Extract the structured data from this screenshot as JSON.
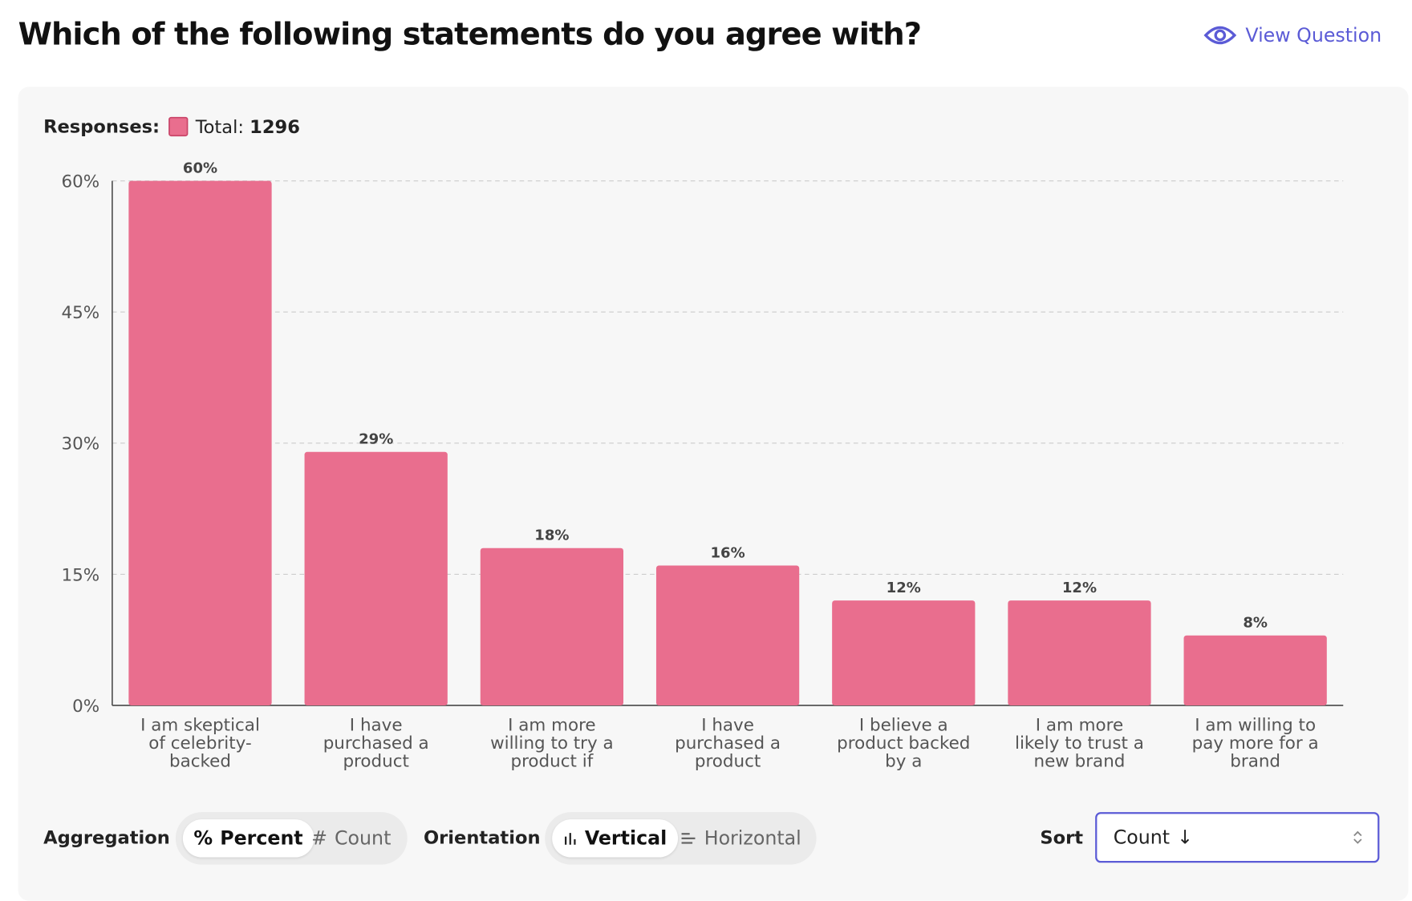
{
  "header": {
    "title": "Which of the following statements do you agree with?",
    "link": "View Question"
  },
  "chart_data": {
    "type": "bar",
    "legend_label": "Responses:",
    "total_label": "Total:",
    "total": 1296,
    "categories": [
      "I am skeptical of celebrity-backed",
      "I have purchased a product",
      "I am more willing to try a product if",
      "I have purchased a product",
      "I believe a product backed by a",
      "I am more likely to trust a new brand",
      "I am willing to pay more for a brand"
    ],
    "values": [
      60,
      29,
      18,
      16,
      12,
      12,
      8
    ],
    "value_labels": [
      "60%",
      "29%",
      "18%",
      "16%",
      "12%",
      "12%",
      "8%"
    ],
    "color": "#e96e8e",
    "ylim": [
      0,
      60
    ],
    "yticks": [
      {
        "value": 0,
        "label": "0%"
      },
      {
        "value": 15,
        "label": "15%"
      },
      {
        "value": 30,
        "label": "30%"
      },
      {
        "value": 45,
        "label": "45%"
      },
      {
        "value": 60,
        "label": "60%"
      }
    ],
    "grid": true
  },
  "controls": {
    "aggregation": {
      "label": "Aggregation",
      "options": [
        "Percent",
        "Count"
      ]
    },
    "orientation": {
      "label": "Orientation",
      "options": [
        "Vertical",
        "Horizontal"
      ]
    },
    "sort": {
      "label": "Sort",
      "value": "Count"
    }
  }
}
